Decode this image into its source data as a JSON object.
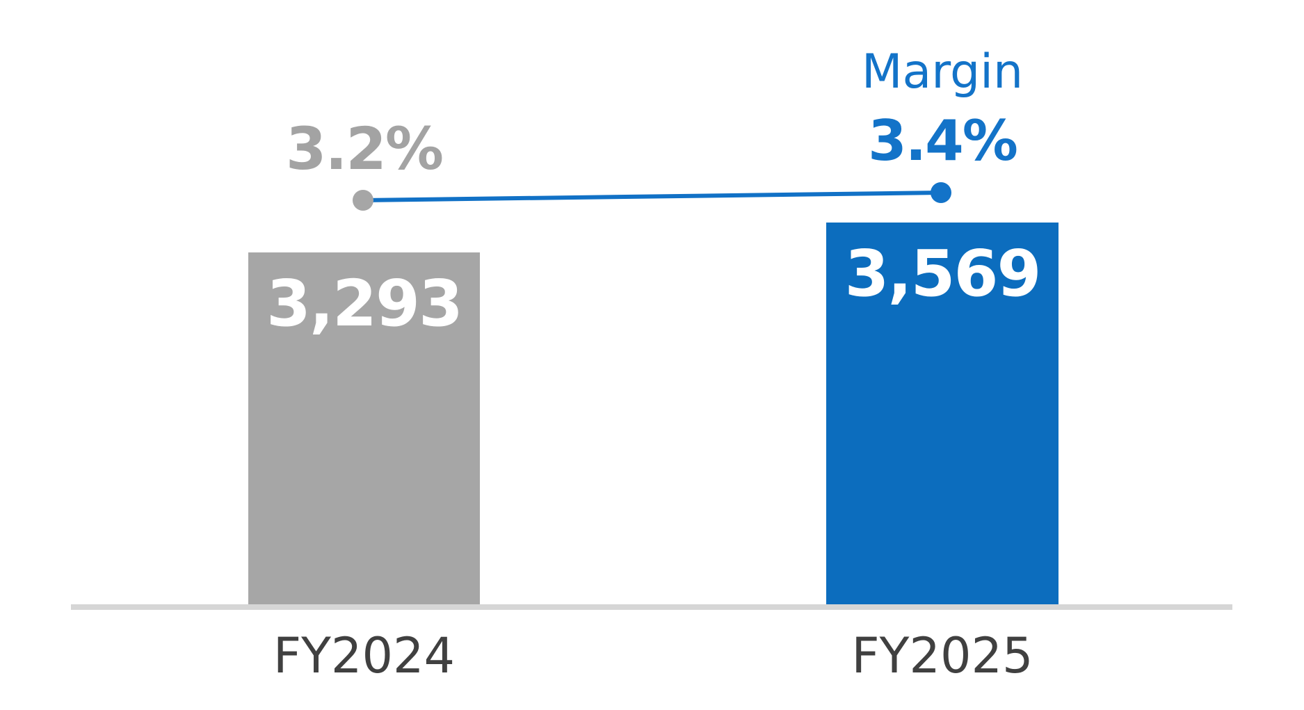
{
  "chart_data": {
    "type": "bar",
    "subtype": "bar-with-margin-line-overlay",
    "title": "",
    "xlabel": "",
    "ylabel": "",
    "grid": false,
    "categories": [
      "FY2024",
      "FY2025"
    ],
    "series": [
      {
        "name": "",
        "type": "bar",
        "values": [
          3293,
          3569
        ],
        "labels": [
          "3,293",
          "3,569"
        ],
        "value_axis_min": 0
      },
      {
        "name": "Margin",
        "type": "line",
        "values": [
          3.2,
          3.4
        ],
        "labels": [
          "3.2%",
          "3.4%"
        ],
        "unit": "%"
      }
    ],
    "legend_position": "above FY2025 line point",
    "ylim": [
      0,
      3900
    ]
  },
  "colors": {
    "background": "#FFFFFF",
    "bar_fy2024": "#A6A6A6",
    "bar_fy2025": "#0C6DBE",
    "bar_value_text": "#FFFFFF",
    "margin_line": "#1171C6",
    "marker_fy2024": "#A6A6A6",
    "marker_fy2025": "#1373C8",
    "margin_label_fy2024": "#A3A3A3",
    "margin_label_fy2025": "#1373C8",
    "margin_series_title": "#1373C8",
    "axis_line": "#D6D6D6",
    "category_label": "#404040"
  }
}
